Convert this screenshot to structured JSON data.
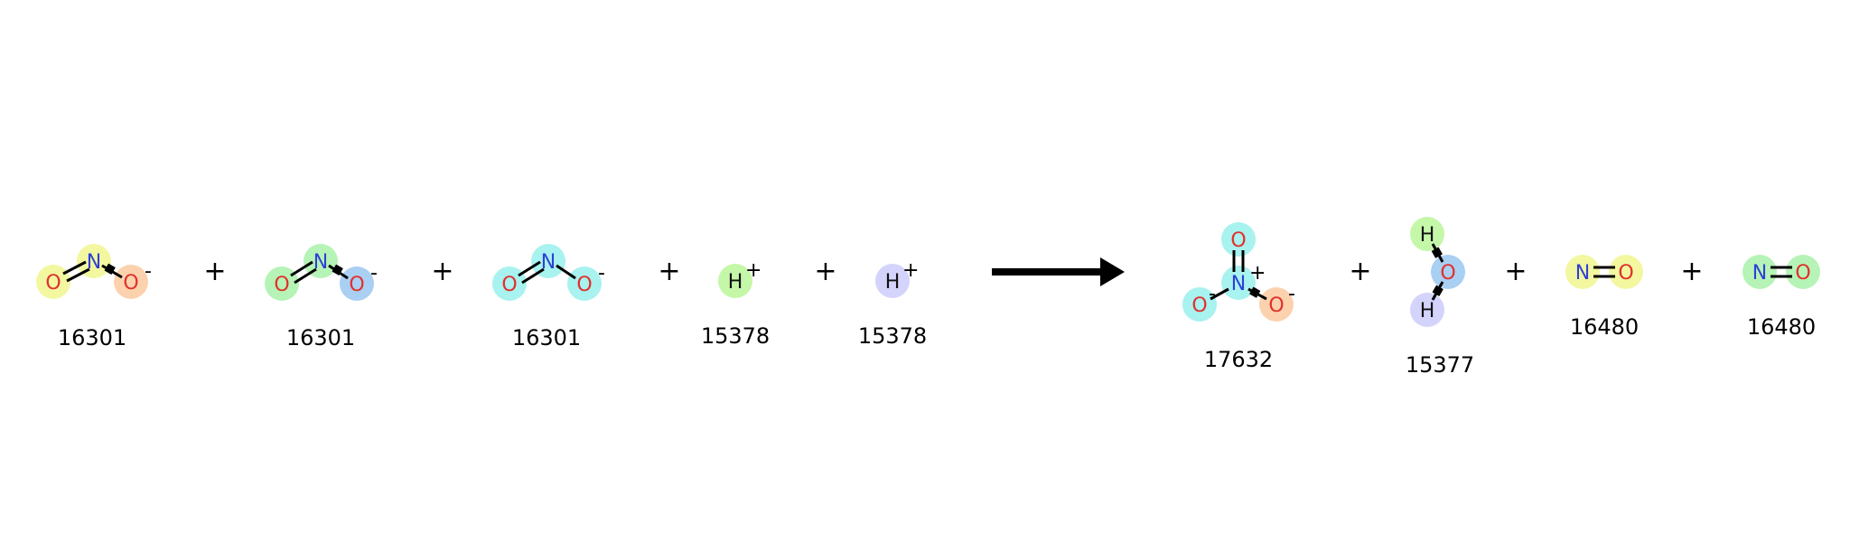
{
  "reaction": {
    "reactants": [
      {
        "id": "r1",
        "label": "16301",
        "atoms": [
          "O",
          "N",
          "O"
        ],
        "charge": "-"
      },
      {
        "id": "r2",
        "label": "16301",
        "atoms": [
          "O",
          "N",
          "O"
        ],
        "charge": "-"
      },
      {
        "id": "r3",
        "label": "16301",
        "atoms": [
          "O",
          "N",
          "O"
        ],
        "charge": "-"
      },
      {
        "id": "r4",
        "label": "15378",
        "atoms": [
          "H"
        ],
        "charge": "+"
      },
      {
        "id": "r5",
        "label": "15378",
        "atoms": [
          "H"
        ],
        "charge": "+"
      }
    ],
    "products": [
      {
        "id": "p1",
        "label": "17632",
        "atoms": [
          "O",
          "N",
          "O",
          "O"
        ],
        "charge_n": "+",
        "charge_o1": "-",
        "charge_o2": "-"
      },
      {
        "id": "p2",
        "label": "15377",
        "atoms": [
          "H",
          "O",
          "H"
        ]
      },
      {
        "id": "p3",
        "label": "16480",
        "atoms": [
          "N",
          "O"
        ]
      },
      {
        "id": "p4",
        "label": "16480",
        "atoms": [
          "N",
          "O"
        ]
      }
    ],
    "plus_sign": "+",
    "arrow": "reaction-arrow"
  },
  "colors": {
    "oxygen_text": "#e0312c",
    "nitrogen_text": "#2f3fd6",
    "hydrogen_text": "#111111",
    "bond": "#000000",
    "highlights": {
      "yellow": "#f3f7a0",
      "peach": "#fbd2ad",
      "green": "#b6f3b6",
      "blue": "#a9cff3",
      "cyan": "#a8f2ef",
      "lime": "#c4f7a8",
      "lavender": "#d3d3fb"
    }
  }
}
